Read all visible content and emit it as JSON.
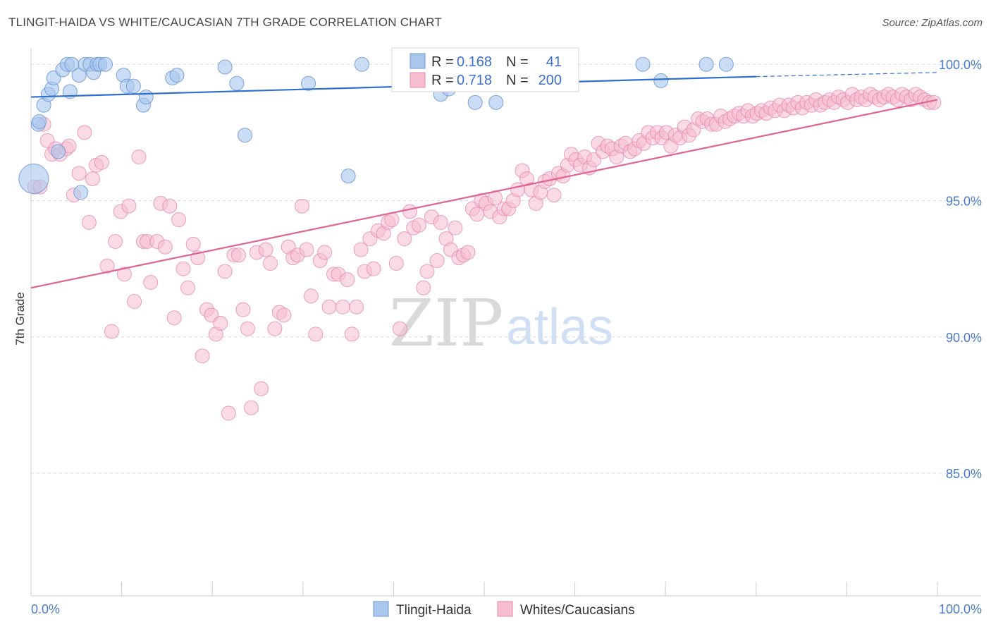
{
  "title": "TLINGIT-HAIDA VS WHITE/CAUCASIAN 7TH GRADE CORRELATION CHART",
  "source": "Source: ZipAtlas.com",
  "colors": {
    "blue_fill": "#a9c6ec",
    "blue_stroke": "#6e9ad6",
    "blue_line": "#2f6fcd",
    "pink_fill": "#f6bcd0",
    "pink_stroke": "#e58aac",
    "pink_line": "#e06392",
    "grid": "#dcdcdc",
    "tick_text": "#4a7ac7"
  },
  "legend": {
    "rows": [
      {
        "r_label": "R =",
        "r_value": "0.168",
        "n_label": "N =",
        "n_value": "41"
      },
      {
        "r_label": "R =",
        "r_value": "0.718",
        "n_label": "N =",
        "n_value": "200"
      }
    ]
  },
  "bottom_legend": [
    "Tlingit-Haida",
    "Whites/Caucasians"
  ],
  "watermark": {
    "zip": "ZIP",
    "atlas": "atlas"
  },
  "chart_data": {
    "type": "scatter",
    "title": "TLINGIT-HAIDA VS WHITE/CAUCASIAN 7TH GRADE CORRELATION CHART",
    "xlabel": "",
    "ylabel": "7th Grade",
    "xlim": [
      0,
      100
    ],
    "ylim": [
      80.5,
      100.6
    ],
    "x_tick_labels": [
      "0.0%",
      "100.0%"
    ],
    "y_ticks": [
      85,
      90,
      95,
      100
    ],
    "y_tick_labels": [
      "85.0%",
      "90.0%",
      "95.0%",
      "100.0%"
    ],
    "grid": true,
    "legend_position": "top-center",
    "series": [
      {
        "name": "Tlingit-Haida",
        "R": 0.168,
        "N": 41,
        "trend": {
          "x0": 0,
          "y0": 98.8,
          "x1": 80,
          "y1": 99.55,
          "dashed_to": 100,
          "dashed_y": 99.7
        },
        "points": [
          [
            0.3,
            95.8
          ],
          [
            0.8,
            97.8
          ],
          [
            0.9,
            97.9
          ],
          [
            1.4,
            98.5
          ],
          [
            1.9,
            98.9
          ],
          [
            2.3,
            99.1
          ],
          [
            2.5,
            99.5
          ],
          [
            3.0,
            96.8
          ],
          [
            3.5,
            99.8
          ],
          [
            4.0,
            100.0
          ],
          [
            4.3,
            99.0
          ],
          [
            4.5,
            100.0
          ],
          [
            5.3,
            99.6
          ],
          [
            5.5,
            95.3
          ],
          [
            6.0,
            100.0
          ],
          [
            6.5,
            100.0
          ],
          [
            6.9,
            99.7
          ],
          [
            7.3,
            100.0
          ],
          [
            7.6,
            100.0
          ],
          [
            8.2,
            100.0
          ],
          [
            10.2,
            99.6
          ],
          [
            10.6,
            99.2
          ],
          [
            11.3,
            99.2
          ],
          [
            12.4,
            98.5
          ],
          [
            12.7,
            98.8
          ],
          [
            15.6,
            99.5
          ],
          [
            16.1,
            99.6
          ],
          [
            21.4,
            99.9
          ],
          [
            22.7,
            99.3
          ],
          [
            23.6,
            97.4
          ],
          [
            30.6,
            99.3
          ],
          [
            35.0,
            95.9
          ],
          [
            36.5,
            100.0
          ],
          [
            45.2,
            98.9
          ],
          [
            46.1,
            99.1
          ],
          [
            49.0,
            98.6
          ],
          [
            51.3,
            98.6
          ],
          [
            67.5,
            100.0
          ],
          [
            69.5,
            99.4
          ],
          [
            74.5,
            100.0
          ],
          [
            76.7,
            100.0
          ]
        ],
        "point_sizes": [
          22,
          11,
          11,
          11,
          11,
          11,
          11,
          11,
          11,
          11,
          11,
          11,
          11,
          11,
          11,
          11,
          11,
          11,
          11,
          11,
          11,
          11,
          11,
          11,
          11,
          11,
          11,
          11,
          11,
          11,
          11,
          11,
          11,
          11,
          11,
          11,
          11,
          11,
          11,
          11,
          11
        ]
      },
      {
        "name": "Whites/Caucasians",
        "R": 0.718,
        "N": 200,
        "trend": {
          "x0": 0,
          "y0": 91.8,
          "x1": 100,
          "y1": 98.7
        },
        "points": [
          [
            0.4,
            95.5
          ],
          [
            1.0,
            95.5
          ],
          [
            1.4,
            97.8
          ],
          [
            1.8,
            97.2
          ],
          [
            2.3,
            96.7
          ],
          [
            2.7,
            96.9
          ],
          [
            3.2,
            96.7
          ],
          [
            3.9,
            96.9
          ],
          [
            4.2,
            97.0
          ],
          [
            4.7,
            95.2
          ],
          [
            5.3,
            96.0
          ],
          [
            5.9,
            97.5
          ],
          [
            6.4,
            94.2
          ],
          [
            6.8,
            95.8
          ],
          [
            7.2,
            96.3
          ],
          [
            7.8,
            96.4
          ],
          [
            8.4,
            92.6
          ],
          [
            8.9,
            90.2
          ],
          [
            9.3,
            93.5
          ],
          [
            9.9,
            94.6
          ],
          [
            10.3,
            92.3
          ],
          [
            10.8,
            94.8
          ],
          [
            11.4,
            91.3
          ],
          [
            11.9,
            96.6
          ],
          [
            12.4,
            93.5
          ],
          [
            12.8,
            93.5
          ],
          [
            13.2,
            92.0
          ],
          [
            13.9,
            93.5
          ],
          [
            14.3,
            94.9
          ],
          [
            14.8,
            93.3
          ],
          [
            15.3,
            94.8
          ],
          [
            15.8,
            90.7
          ],
          [
            16.3,
            94.3
          ],
          [
            16.8,
            92.5
          ],
          [
            17.3,
            91.8
          ],
          [
            17.9,
            93.4
          ],
          [
            18.4,
            92.9
          ],
          [
            18.9,
            89.3
          ],
          [
            19.4,
            91.0
          ],
          [
            19.9,
            90.8
          ],
          [
            20.4,
            90.1
          ],
          [
            20.9,
            90.5
          ],
          [
            21.4,
            92.4
          ],
          [
            21.8,
            87.2
          ],
          [
            22.4,
            93.0
          ],
          [
            22.9,
            93.0
          ],
          [
            23.4,
            91.0
          ],
          [
            23.9,
            90.3
          ],
          [
            24.3,
            87.4
          ],
          [
            24.9,
            93.1
          ],
          [
            25.4,
            88.1
          ],
          [
            25.9,
            93.2
          ],
          [
            26.4,
            92.7
          ],
          [
            26.9,
            90.3
          ],
          [
            27.4,
            90.9
          ],
          [
            27.9,
            90.8
          ],
          [
            28.4,
            93.3
          ],
          [
            28.9,
            92.9
          ],
          [
            29.4,
            93.0
          ],
          [
            29.9,
            94.8
          ],
          [
            30.4,
            93.2
          ],
          [
            30.9,
            91.5
          ],
          [
            31.4,
            90.1
          ],
          [
            31.9,
            92.8
          ],
          [
            32.4,
            93.1
          ],
          [
            32.9,
            91.1
          ],
          [
            33.4,
            92.3
          ],
          [
            33.9,
            92.3
          ],
          [
            34.4,
            91.1
          ],
          [
            34.9,
            92.1
          ],
          [
            35.4,
            90.1
          ],
          [
            35.9,
            91.1
          ],
          [
            36.4,
            93.2
          ],
          [
            36.8,
            92.4
          ],
          [
            37.4,
            93.6
          ],
          [
            37.8,
            92.5
          ],
          [
            38.3,
            93.9
          ],
          [
            38.9,
            93.8
          ],
          [
            39.4,
            94.2
          ],
          [
            39.8,
            94.3
          ],
          [
            40.3,
            92.7
          ],
          [
            40.7,
            90.3
          ],
          [
            41.2,
            93.6
          ],
          [
            41.8,
            94.6
          ],
          [
            42.2,
            94.0
          ],
          [
            42.8,
            94.1
          ],
          [
            43.3,
            91.8
          ],
          [
            43.7,
            92.4
          ],
          [
            44.2,
            94.4
          ],
          [
            44.8,
            92.8
          ],
          [
            45.2,
            94.2
          ],
          [
            45.8,
            93.6
          ],
          [
            46.3,
            93.2
          ],
          [
            46.8,
            94.0
          ],
          [
            47.2,
            92.9
          ],
          [
            47.7,
            93.0
          ],
          [
            48.2,
            93.1
          ],
          [
            48.7,
            94.7
          ],
          [
            49.2,
            94.5
          ],
          [
            49.7,
            95.0
          ],
          [
            50.2,
            94.9
          ],
          [
            50.7,
            94.6
          ],
          [
            51.2,
            95.1
          ],
          [
            51.7,
            94.4
          ],
          [
            52.2,
            94.7
          ],
          [
            52.7,
            94.7
          ],
          [
            53.2,
            95.0
          ],
          [
            53.7,
            95.4
          ],
          [
            54.2,
            96.1
          ],
          [
            54.7,
            95.8
          ],
          [
            55.2,
            95.4
          ],
          [
            55.7,
            94.9
          ],
          [
            56.2,
            95.3
          ],
          [
            56.7,
            95.7
          ],
          [
            57.2,
            95.8
          ],
          [
            57.7,
            95.2
          ],
          [
            58.2,
            96.0
          ],
          [
            58.7,
            95.9
          ],
          [
            59.2,
            96.3
          ],
          [
            59.6,
            96.7
          ],
          [
            60.1,
            96.5
          ],
          [
            60.6,
            96.3
          ],
          [
            61.1,
            96.6
          ],
          [
            61.6,
            96.2
          ],
          [
            62.1,
            96.5
          ],
          [
            62.6,
            97.1
          ],
          [
            63.1,
            96.8
          ],
          [
            63.6,
            97.0
          ],
          [
            64.1,
            96.9
          ],
          [
            64.6,
            96.6
          ],
          [
            65.1,
            97.0
          ],
          [
            65.6,
            97.1
          ],
          [
            66.1,
            96.8
          ],
          [
            66.6,
            96.9
          ],
          [
            67.1,
            97.2
          ],
          [
            67.6,
            97.1
          ],
          [
            68.1,
            97.5
          ],
          [
            68.6,
            97.3
          ],
          [
            69.1,
            97.5
          ],
          [
            69.6,
            97.3
          ],
          [
            70.1,
            97.5
          ],
          [
            70.6,
            97.0
          ],
          [
            71.1,
            97.4
          ],
          [
            71.6,
            97.3
          ],
          [
            72.1,
            97.7
          ],
          [
            72.6,
            97.4
          ],
          [
            73.1,
            97.6
          ],
          [
            73.6,
            98.0
          ],
          [
            74.1,
            97.9
          ],
          [
            74.6,
            98.0
          ],
          [
            75.1,
            97.8
          ],
          [
            75.6,
            97.8
          ],
          [
            76.1,
            98.1
          ],
          [
            76.6,
            97.9
          ],
          [
            77.1,
            98.0
          ],
          [
            77.6,
            98.1
          ],
          [
            78.1,
            98.2
          ],
          [
            78.6,
            98.1
          ],
          [
            79.1,
            98.3
          ],
          [
            79.6,
            98.1
          ],
          [
            80.1,
            98.2
          ],
          [
            80.6,
            98.3
          ],
          [
            81.1,
            98.2
          ],
          [
            81.6,
            98.4
          ],
          [
            82.1,
            98.3
          ],
          [
            82.6,
            98.5
          ],
          [
            83.1,
            98.3
          ],
          [
            83.6,
            98.5
          ],
          [
            84.1,
            98.4
          ],
          [
            84.6,
            98.6
          ],
          [
            85.1,
            98.4
          ],
          [
            85.6,
            98.6
          ],
          [
            86.1,
            98.5
          ],
          [
            86.6,
            98.7
          ],
          [
            87.1,
            98.5
          ],
          [
            87.6,
            98.6
          ],
          [
            88.1,
            98.7
          ],
          [
            88.6,
            98.6
          ],
          [
            89.1,
            98.8
          ],
          [
            89.6,
            98.7
          ],
          [
            90.1,
            98.6
          ],
          [
            90.6,
            98.9
          ],
          [
            91.1,
            98.7
          ],
          [
            91.6,
            98.8
          ],
          [
            92.1,
            98.7
          ],
          [
            92.6,
            98.9
          ],
          [
            93.1,
            98.8
          ],
          [
            93.6,
            98.7
          ],
          [
            94.1,
            98.8
          ],
          [
            94.6,
            98.9
          ],
          [
            95.1,
            98.8
          ],
          [
            95.6,
            98.7
          ],
          [
            96.1,
            98.9
          ],
          [
            96.6,
            98.8
          ],
          [
            97.1,
            98.7
          ],
          [
            97.6,
            98.9
          ],
          [
            98.1,
            98.8
          ],
          [
            98.6,
            98.7
          ],
          [
            99.1,
            98.6
          ],
          [
            99.6,
            98.6
          ]
        ]
      }
    ]
  }
}
